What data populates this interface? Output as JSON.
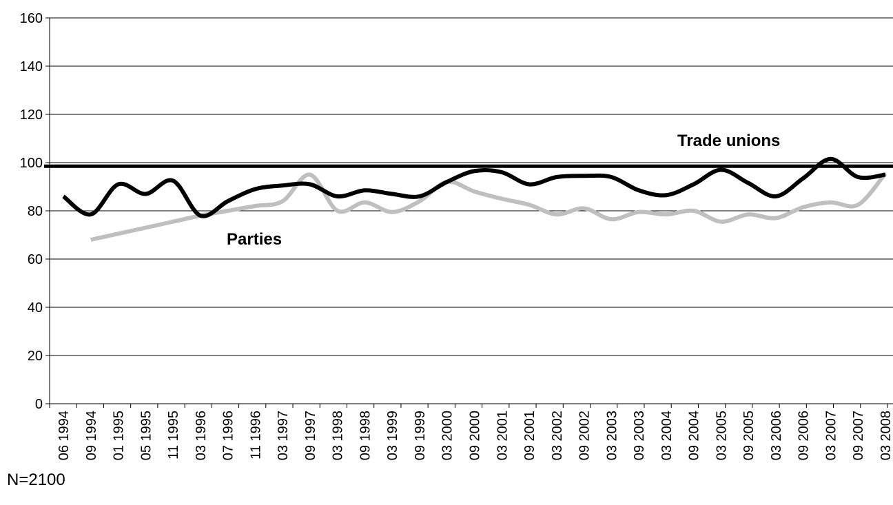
{
  "chart_data": {
    "type": "line",
    "ylim": [
      0,
      160
    ],
    "yticks": [
      0,
      20,
      40,
      60,
      80,
      100,
      120,
      140,
      160
    ],
    "grid": "horizontal",
    "categories": [
      "06 1994",
      "09 1994",
      "01 1995",
      "05 1995",
      "11 1995",
      "03 1996",
      "07 1996",
      "11 1996",
      "03 1997",
      "09 1997",
      "03 1998",
      "09 1998",
      "03 1999",
      "09 1999",
      "03 2000",
      "09 2000",
      "03 2001",
      "09 2001",
      "03 2002",
      "09 2002",
      "03 2003",
      "09 2003",
      "03 2004",
      "09 2004",
      "03 2005",
      "09 2005",
      "03 2006",
      "09 2006",
      "03 2007",
      "09 2007",
      "03 2008"
    ],
    "series": [
      {
        "name": "Trade unions",
        "color": "#000000",
        "values": [
          86,
          78.5,
          91,
          87,
          92.5,
          78,
          84,
          89,
          90.5,
          91,
          86,
          88.5,
          87,
          86,
          92,
          96.5,
          96,
          91,
          94,
          94.5,
          94,
          88.5,
          86.5,
          91,
          97,
          91.5,
          86,
          93.5,
          101.5,
          94,
          95
        ]
      },
      {
        "name": "Parties",
        "color": "#bfbfbf",
        "values": [
          null,
          68,
          70.5,
          73,
          75.5,
          78,
          80,
          82,
          84,
          95,
          80,
          83.5,
          79.5,
          84,
          92,
          88,
          85,
          82.5,
          78.5,
          81,
          76.5,
          79.5,
          78.5,
          80,
          75.5,
          78.5,
          77,
          81.5,
          83.5,
          82.5,
          95.5
        ]
      },
      {
        "name": "reference",
        "color": "#000000",
        "values": [
          98.5,
          98.5,
          98.5,
          98.5,
          98.5,
          98.5,
          98.5,
          98.5,
          98.5,
          98.5,
          98.5,
          98.5,
          98.5,
          98.5,
          98.5,
          98.5,
          98.5,
          98.5,
          98.5,
          98.5,
          98.5,
          98.5,
          98.5,
          98.5,
          98.5,
          98.5,
          98.5,
          98.5,
          98.5,
          98.5,
          98.5
        ]
      }
    ]
  },
  "labels": {
    "trade_unions": "Trade unions",
    "parties": "Parties"
  },
  "note": "N=2100"
}
